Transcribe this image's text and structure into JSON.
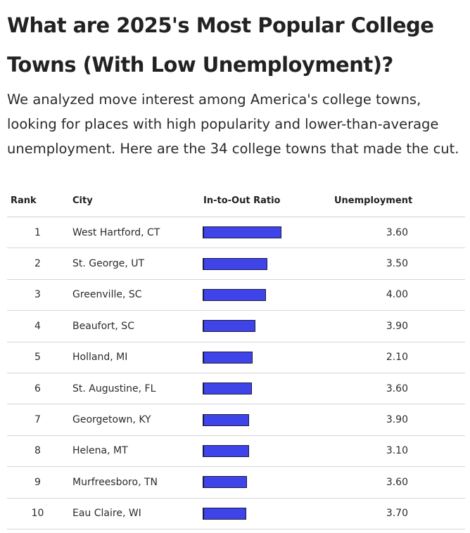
{
  "title": "What are 2025's Most Popular College Towns (With Low Unemployment)?",
  "subtitle": "We analyzed move interest among America's college towns, looking for places with high popularity and lower-than-average unemployment. Here are the 34 college towns that made the cut.",
  "table": {
    "headers": {
      "rank": "Rank",
      "city": "City",
      "ratio": "In-to-Out Ratio",
      "unemployment": "Unemployment"
    },
    "bar_color": "#3f44e8"
  },
  "chart_data": {
    "type": "table",
    "title": "What are 2025's Most Popular College Towns (With Low Unemployment)?",
    "columns": [
      "Rank",
      "City",
      "In-to-Out Ratio",
      "Unemployment"
    ],
    "bar_column": "In-to-Out Ratio",
    "bar_scale_max": 1.0,
    "rows": [
      {
        "rank": "1",
        "city": "West Hartford, CT",
        "ratio": 0.66,
        "unemployment": "3.60"
      },
      {
        "rank": "2",
        "city": "St. George, UT",
        "ratio": 0.54,
        "unemployment": "3.50"
      },
      {
        "rank": "3",
        "city": "Greenville, SC",
        "ratio": 0.53,
        "unemployment": "4.00"
      },
      {
        "rank": "4",
        "city": "Beaufort, SC",
        "ratio": 0.44,
        "unemployment": "3.90"
      },
      {
        "rank": "5",
        "city": "Holland, MI",
        "ratio": 0.415,
        "unemployment": "2.10"
      },
      {
        "rank": "6",
        "city": "St. Augustine, FL",
        "ratio": 0.41,
        "unemployment": "3.60"
      },
      {
        "rank": "7",
        "city": "Georgetown, KY",
        "ratio": 0.39,
        "unemployment": "3.90"
      },
      {
        "rank": "8",
        "city": "Helena, MT",
        "ratio": 0.39,
        "unemployment": "3.10"
      },
      {
        "rank": "9",
        "city": "Murfreesboro, TN",
        "ratio": 0.37,
        "unemployment": "3.60"
      },
      {
        "rank": "10",
        "city": "Eau Claire, WI",
        "ratio": 0.365,
        "unemployment": "3.70"
      }
    ]
  }
}
